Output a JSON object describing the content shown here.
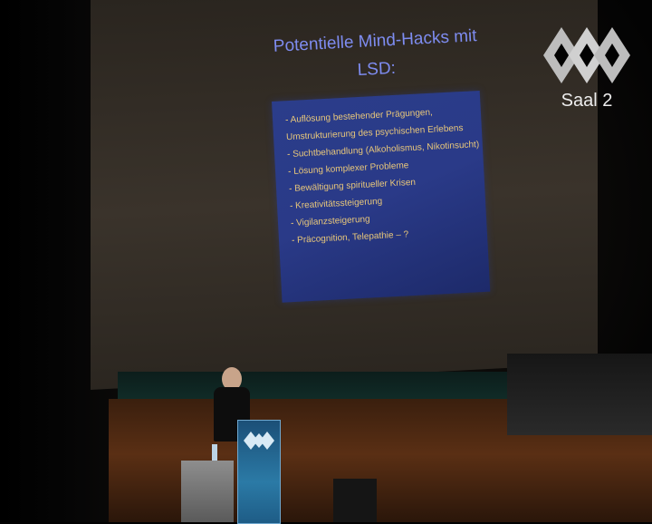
{
  "overlay": {
    "room_label": "Saal 2",
    "logo_icon": "congress-logo-icon"
  },
  "slide": {
    "title": "Potentielle Mind-Hacks mit LSD:",
    "items": [
      "- Auflösung bestehender Prägungen,",
      "Umstrukturierung des psychischen Erlebens",
      "- Suchtbehandlung (Alkoholismus, Nikotinsucht)",
      "- Lösung komplexer Probleme",
      "- Bewältigung spiritueller Krisen",
      "- Kreativitätssteigerung",
      "- Vigilanzsteigerung",
      "- Präcognition, Telepathie – ?"
    ]
  },
  "colors": {
    "slide_background": "#2b3d8a",
    "slide_title": "#7e8cf0",
    "slide_text": "#e8c77a",
    "overlay_text": "#ededed"
  }
}
